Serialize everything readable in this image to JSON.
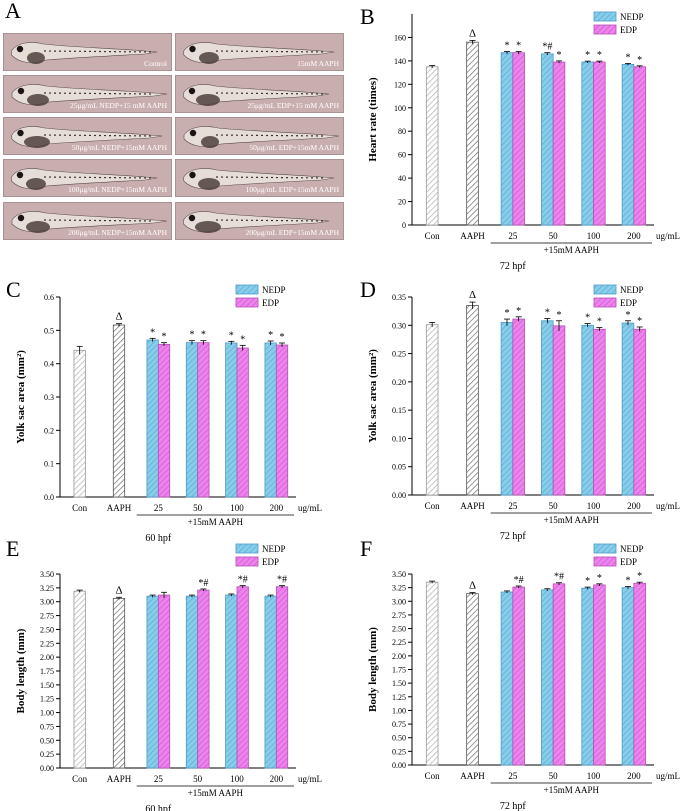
{
  "panel_a": {
    "label": "A",
    "images": [
      {
        "caption": "Control"
      },
      {
        "caption": "15mM AAPH"
      },
      {
        "caption": "25μg/mL NEDP+15 mM AAPH"
      },
      {
        "caption": "25μg/mL EDP+15 mM AAPH"
      },
      {
        "caption": "50μg/mL NEDP+15mM AAPH"
      },
      {
        "caption": "50μg/mL EDP+15mM AAPH"
      },
      {
        "caption": "100μg/mL NEDP+15mM AAPH"
      },
      {
        "caption": "100μg/mL EDP+15mM AAPH"
      },
      {
        "caption": "200μg/mL NEDP+15mM AAPH"
      },
      {
        "caption": "200μg/mL EDP+15mM AAPH"
      }
    ]
  },
  "colors": {
    "con": "#b0b0b0",
    "aaph": "#6e6e6e",
    "nedp": "#87ceeb",
    "edp": "#ee82ee"
  },
  "chart_data": [
    {
      "panel": "B",
      "type": "bar",
      "ylabel": "Heart rate (times)",
      "ylim": [
        0,
        180
      ],
      "yticks": [
        0,
        20,
        40,
        60,
        80,
        100,
        120,
        140,
        160
      ],
      "control_labels": [
        "Con",
        "AAPH"
      ],
      "control_values": [
        135,
        156
      ],
      "control_errors": [
        1,
        1.5
      ],
      "aaph_mark": "Δ",
      "dose_labels": [
        "25",
        "50",
        "100",
        "200"
      ],
      "unit": "ug/mL",
      "group_label": "+15mM AAPH",
      "time_label": "72 hpf",
      "series": [
        {
          "name": "NEDP",
          "values": [
            147,
            146,
            139,
            137
          ],
          "errors": [
            1,
            1,
            0.8,
            0.8
          ],
          "marks": [
            "*",
            "*#",
            "*",
            "*"
          ]
        },
        {
          "name": "EDP",
          "values": [
            147,
            139,
            139,
            135
          ],
          "errors": [
            1,
            1,
            0.8,
            0.8
          ],
          "marks": [
            "*",
            "*",
            "*",
            "*"
          ]
        }
      ]
    },
    {
      "panel": "C",
      "type": "bar",
      "ylabel": "Yolk sac area (mm²)",
      "ylim": [
        0,
        0.6
      ],
      "yticks": [
        "0.0",
        "0.1",
        "0.2",
        "0.3",
        "0.4",
        "0.5",
        "0.6"
      ],
      "control_labels": [
        "Con",
        "AAPH"
      ],
      "control_values": [
        0.44,
        0.516
      ],
      "control_errors": [
        0.012,
        0.004
      ],
      "aaph_mark": "Δ",
      "dose_labels": [
        "25",
        "50",
        "100",
        "200"
      ],
      "unit": "ug/mL",
      "group_label": "+15mM AAPH",
      "time_label": "60 hpf",
      "series": [
        {
          "name": "NEDP",
          "values": [
            0.471,
            0.463,
            0.462,
            0.462
          ],
          "errors": [
            0.005,
            0.006,
            0.005,
            0.006
          ],
          "marks": [
            "*",
            "*",
            "*",
            "*"
          ]
        },
        {
          "name": "EDP",
          "values": [
            0.458,
            0.463,
            0.447,
            0.456
          ],
          "errors": [
            0.005,
            0.006,
            0.008,
            0.006
          ],
          "marks": [
            "*",
            "*",
            "*",
            "*"
          ]
        }
      ]
    },
    {
      "panel": "D",
      "type": "bar",
      "ylabel": "Yolk sac area (mm²)",
      "ylim": [
        0,
        0.35
      ],
      "yticks": [
        "0.00",
        "0.05",
        "0.10",
        "0.15",
        "0.20",
        "0.25",
        "0.30",
        "0.35"
      ],
      "control_labels": [
        "Con",
        "AAPH"
      ],
      "control_values": [
        0.301,
        0.335
      ],
      "control_errors": [
        0.004,
        0.006
      ],
      "aaph_mark": "Δ",
      "dose_labels": [
        "25",
        "50",
        "100",
        "200"
      ],
      "unit": "ug/mL",
      "group_label": "+15mM AAPH",
      "time_label": "72 hpf",
      "series": [
        {
          "name": "NEDP",
          "values": [
            0.305,
            0.308,
            0.3,
            0.304
          ],
          "errors": [
            0.006,
            0.004,
            0.003,
            0.004
          ],
          "marks": [
            "*",
            "*",
            "*",
            "*"
          ]
        },
        {
          "name": "EDP",
          "values": [
            0.311,
            0.299,
            0.293,
            0.293
          ],
          "errors": [
            0.004,
            0.009,
            0.003,
            0.004
          ],
          "marks": [
            "*",
            "*",
            "*",
            "*"
          ]
        }
      ]
    },
    {
      "panel": "E",
      "type": "bar",
      "ylabel": "Body length (mm)",
      "ylim": [
        0,
        3.5
      ],
      "yticks": [
        "0.00",
        "0.25",
        "0.50",
        "0.75",
        "1.00",
        "1.25",
        "1.50",
        "1.75",
        "2.00",
        "2.25",
        "2.50",
        "2.75",
        "3.00",
        "3.25",
        "3.50"
      ],
      "control_labels": [
        "Con",
        "AAPH"
      ],
      "control_values": [
        3.19,
        3.06
      ],
      "control_errors": [
        0.02,
        0.02
      ],
      "aaph_mark": "Δ",
      "dose_labels": [
        "25",
        "50",
        "100",
        "200"
      ],
      "unit": "ug/mL",
      "group_label": "+15mM AAPH",
      "time_label": "60 hpf",
      "series": [
        {
          "name": "NEDP",
          "values": [
            3.1,
            3.1,
            3.12,
            3.1
          ],
          "errors": [
            0.02,
            0.02,
            0.02,
            0.02
          ],
          "marks": [
            "",
            "",
            "",
            ""
          ]
        },
        {
          "name": "EDP",
          "values": [
            3.12,
            3.21,
            3.27,
            3.27
          ],
          "errors": [
            0.05,
            0.02,
            0.02,
            0.02
          ],
          "marks": [
            "",
            "*#",
            "*#",
            "*#"
          ]
        }
      ]
    },
    {
      "panel": "F",
      "type": "bar",
      "ylabel": "Body length (mm)",
      "ylim": [
        0,
        3.5
      ],
      "yticks": [
        "0.00",
        "0.25",
        "0.50",
        "0.75",
        "1.00",
        "1.25",
        "1.50",
        "1.75",
        "2.00",
        "2.25",
        "2.50",
        "2.75",
        "3.00",
        "3.25",
        "3.50"
      ],
      "control_labels": [
        "Con",
        "AAPH"
      ],
      "control_values": [
        3.35,
        3.14
      ],
      "control_errors": [
        0.02,
        0.02
      ],
      "aaph_mark": "Δ",
      "dose_labels": [
        "25",
        "50",
        "100",
        "200"
      ],
      "unit": "ug/mL",
      "group_label": "+15mM AAPH",
      "time_label": "72 hpf",
      "series": [
        {
          "name": "NEDP",
          "values": [
            3.17,
            3.21,
            3.24,
            3.25
          ],
          "errors": [
            0.02,
            0.02,
            0.02,
            0.02
          ],
          "marks": [
            "",
            "",
            "*",
            "*"
          ]
        },
        {
          "name": "EDP",
          "values": [
            3.26,
            3.32,
            3.3,
            3.33
          ],
          "errors": [
            0.02,
            0.02,
            0.02,
            0.02
          ],
          "marks": [
            "*#",
            "*#",
            "*",
            "*"
          ]
        }
      ]
    }
  ]
}
